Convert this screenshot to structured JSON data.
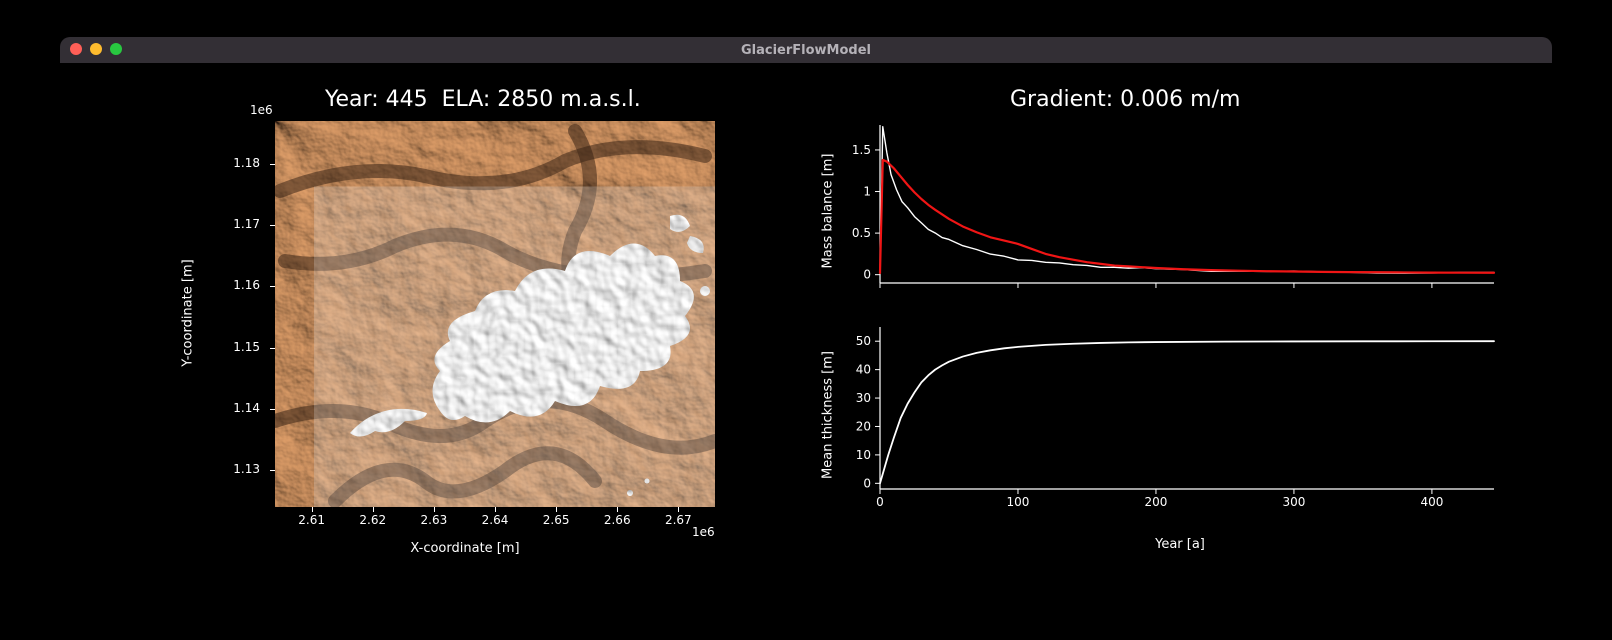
{
  "window": {
    "title": "GlacierFlowModel",
    "titlebar_bg": "#332f35",
    "title_color": "#b5b2b8",
    "traffic_colors": [
      "#ff5f57",
      "#febc2e",
      "#28c840"
    ],
    "background": "#000000"
  },
  "left_plot": {
    "title": "Year: 445  ELA: 2850 m.a.s.l.",
    "xlabel": "X-coordinate [m]",
    "ylabel": "Y-coordinate [m]",
    "x_exp_label": "1e6",
    "y_exp_label": "1e6",
    "x_ticks": [
      "2.61",
      "2.62",
      "2.63",
      "2.64",
      "2.65",
      "2.66",
      "2.67"
    ],
    "y_ticks": [
      "1.13",
      "1.14",
      "1.15",
      "1.16",
      "1.17",
      "1.18"
    ],
    "xlim": [
      2.604,
      2.676
    ],
    "ylim": [
      1.124,
      1.187
    ],
    "terrain_color_light": "#d99a66",
    "terrain_color_mid": "#b57749",
    "terrain_color_dark": "#3a2416",
    "ice_color": "#f5f5f5",
    "ice_shadow": "#8c8c8c",
    "text_color": "#ffffff",
    "tick_color": "#ffffff",
    "title_fontsize": 22,
    "label_fontsize": 13,
    "tick_fontsize": 12
  },
  "right_plot": {
    "title": "Gradient: 0.006 m/m",
    "xlabel": "Year [a]",
    "x_ticks": [
      0,
      100,
      200,
      300,
      400
    ],
    "xlim": [
      0,
      445
    ],
    "top": {
      "ylabel": "Mass balance [m]",
      "y_ticks": [
        0.0,
        0.5,
        1.0,
        1.5
      ],
      "ylim": [
        -0.1,
        1.8
      ],
      "series": [
        {
          "name": "accumulation",
          "color": "#ffffff",
          "line_width": 1.4,
          "points": [
            [
              0,
              0.02
            ],
            [
              2,
              1.78
            ],
            [
              5,
              1.45
            ],
            [
              8,
              1.21
            ],
            [
              12,
              1.02
            ],
            [
              16,
              0.89
            ],
            [
              20,
              0.8
            ],
            [
              25,
              0.7
            ],
            [
              30,
              0.61
            ],
            [
              35,
              0.55
            ],
            [
              40,
              0.5
            ],
            [
              45,
              0.46
            ],
            [
              50,
              0.42
            ],
            [
              60,
              0.35
            ],
            [
              70,
              0.29
            ],
            [
              80,
              0.25
            ],
            [
              90,
              0.22
            ],
            [
              100,
              0.19
            ],
            [
              110,
              0.17
            ],
            [
              120,
              0.15
            ],
            [
              130,
              0.13
            ],
            [
              140,
              0.12
            ],
            [
              150,
              0.11
            ],
            [
              160,
              0.1
            ],
            [
              170,
              0.09
            ],
            [
              180,
              0.08
            ],
            [
              190,
              0.075
            ],
            [
              200,
              0.07
            ],
            [
              220,
              0.06
            ],
            [
              240,
              0.05
            ],
            [
              260,
              0.045
            ],
            [
              280,
              0.04
            ],
            [
              300,
              0.035
            ],
            [
              320,
              0.03
            ],
            [
              340,
              0.028
            ],
            [
              360,
              0.026
            ],
            [
              380,
              0.024
            ],
            [
              400,
              0.022
            ],
            [
              420,
              0.021
            ],
            [
              445,
              0.02
            ]
          ],
          "jitter": 0.02
        },
        {
          "name": "ablation",
          "color": "#f01515",
          "line_width": 2.2,
          "points": [
            [
              0,
              0.02
            ],
            [
              2,
              1.38
            ],
            [
              5,
              1.36
            ],
            [
              10,
              1.28
            ],
            [
              15,
              1.18
            ],
            [
              20,
              1.08
            ],
            [
              25,
              0.99
            ],
            [
              30,
              0.91
            ],
            [
              35,
              0.84
            ],
            [
              40,
              0.78
            ],
            [
              50,
              0.67
            ],
            [
              60,
              0.58
            ],
            [
              70,
              0.51
            ],
            [
              80,
              0.45
            ],
            [
              90,
              0.41
            ],
            [
              100,
              0.37
            ],
            [
              110,
              0.31
            ],
            [
              120,
              0.25
            ],
            [
              130,
              0.21
            ],
            [
              140,
              0.18
            ],
            [
              150,
              0.15
            ],
            [
              160,
              0.13
            ],
            [
              170,
              0.11
            ],
            [
              180,
              0.1
            ],
            [
              190,
              0.09
            ],
            [
              200,
              0.08
            ],
            [
              220,
              0.065
            ],
            [
              240,
              0.055
            ],
            [
              260,
              0.048
            ],
            [
              280,
              0.042
            ],
            [
              300,
              0.038
            ],
            [
              320,
              0.034
            ],
            [
              340,
              0.031
            ],
            [
              360,
              0.029
            ],
            [
              380,
              0.027
            ],
            [
              400,
              0.025
            ],
            [
              420,
              0.024
            ],
            [
              445,
              0.023
            ]
          ]
        }
      ]
    },
    "bottom": {
      "ylabel": "Mean thickness [m]",
      "y_ticks": [
        0,
        10,
        20,
        30,
        40,
        50
      ],
      "ylim": [
        -2,
        55
      ],
      "series": [
        {
          "name": "thickness",
          "color": "#ffffff",
          "line_width": 1.8,
          "points": [
            [
              0,
              0
            ],
            [
              3,
              5
            ],
            [
              6,
              10
            ],
            [
              10,
              16
            ],
            [
              15,
              23
            ],
            [
              20,
              28
            ],
            [
              25,
              32
            ],
            [
              30,
              35.5
            ],
            [
              35,
              38
            ],
            [
              40,
              40
            ],
            [
              45,
              41.5
            ],
            [
              50,
              42.8
            ],
            [
              60,
              44.6
            ],
            [
              70,
              45.9
            ],
            [
              80,
              46.8
            ],
            [
              90,
              47.5
            ],
            [
              100,
              48.0
            ],
            [
              120,
              48.7
            ],
            [
              140,
              49.1
            ],
            [
              160,
              49.4
            ],
            [
              180,
              49.6
            ],
            [
              200,
              49.7
            ],
            [
              250,
              49.85
            ],
            [
              300,
              49.92
            ],
            [
              350,
              49.96
            ],
            [
              400,
              49.98
            ],
            [
              445,
              50.0
            ]
          ]
        }
      ]
    },
    "axis_color": "#ffffff",
    "text_color": "#ffffff",
    "spine_width": 1.2,
    "tick_length": 5,
    "title_fontsize": 22,
    "label_fontsize": 13,
    "tick_fontsize": 12
  }
}
